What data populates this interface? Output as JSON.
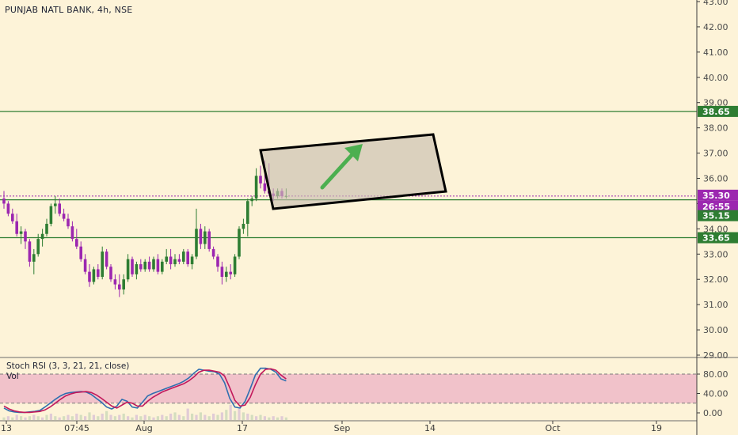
{
  "title": "PUNJAB NATL BANK, 4h, NSE",
  "colors": {
    "background": "#fdf3d8",
    "up": "#2e7d32",
    "down": "#9c27b0",
    "level_line": "#2e7d32",
    "last_price": "#9c27b0",
    "rsi_k": "#2f6fb0",
    "rsi_d": "#c2185b",
    "rsi_band": "#efb8c8",
    "arrow": "#4caf50"
  },
  "chart_data": [
    {
      "type": "candlestick",
      "title": "PUNJAB NATL BANK, 4h, NSE",
      "ylim": [
        29,
        43
      ],
      "y_ticks": [
        "29.00",
        "30.00",
        "31.00",
        "32.00",
        "33.00",
        "34.00",
        "35.00",
        "36.00",
        "37.00",
        "38.00",
        "39.00",
        "40.00",
        "41.00",
        "42.00",
        "43.00"
      ],
      "x_ticks": [
        "13",
        "07:45",
        "Aug",
        "17",
        "Sep",
        "14",
        "Oct",
        "19"
      ],
      "levels": [
        38.65,
        35.15,
        33.65
      ],
      "level_labels": [
        "38.65",
        "35.15",
        "33.65"
      ],
      "last_price": 35.3,
      "last_price_label": "35.30",
      "countdown_label": "26:55",
      "candles": [
        [
          35.2,
          35.5,
          34.8,
          35.0
        ],
        [
          35.0,
          35.1,
          34.5,
          34.6
        ],
        [
          34.6,
          34.8,
          34.2,
          34.3
        ],
        [
          34.3,
          34.6,
          33.7,
          33.8
        ],
        [
          33.8,
          34.1,
          33.4,
          33.9
        ],
        [
          33.9,
          34.0,
          33.2,
          33.5
        ],
        [
          33.5,
          33.6,
          32.5,
          32.7
        ],
        [
          32.7,
          33.2,
          32.2,
          33.0
        ],
        [
          33.0,
          33.8,
          32.9,
          33.6
        ],
        [
          33.6,
          34.0,
          33.3,
          33.8
        ],
        [
          33.8,
          34.4,
          33.7,
          34.2
        ],
        [
          34.2,
          35.0,
          34.1,
          34.9
        ],
        [
          34.9,
          35.3,
          34.6,
          35.0
        ],
        [
          35.0,
          35.2,
          34.5,
          34.6
        ],
        [
          34.6,
          34.8,
          34.3,
          34.4
        ],
        [
          34.4,
          34.6,
          34.0,
          34.1
        ],
        [
          34.1,
          34.3,
          33.5,
          33.6
        ],
        [
          33.6,
          34.0,
          33.2,
          33.3
        ],
        [
          33.3,
          33.5,
          32.7,
          32.8
        ],
        [
          32.8,
          33.0,
          32.2,
          32.3
        ],
        [
          32.3,
          32.6,
          31.7,
          31.9
        ],
        [
          31.9,
          32.5,
          31.8,
          32.4
        ],
        [
          32.4,
          32.6,
          32.0,
          32.1
        ],
        [
          32.1,
          33.3,
          32.0,
          33.1
        ],
        [
          33.1,
          33.2,
          32.4,
          32.5
        ],
        [
          32.5,
          32.6,
          31.9,
          32.0
        ],
        [
          32.0,
          32.2,
          31.6,
          31.8
        ],
        [
          31.8,
          32.2,
          31.3,
          31.6
        ],
        [
          31.6,
          32.2,
          31.4,
          32.0
        ],
        [
          32.0,
          33.0,
          31.9,
          32.8
        ],
        [
          32.8,
          32.9,
          32.1,
          32.2
        ],
        [
          32.2,
          32.7,
          32.0,
          32.6
        ],
        [
          32.6,
          32.8,
          32.3,
          32.4
        ],
        [
          32.4,
          32.8,
          32.3,
          32.7
        ],
        [
          32.7,
          32.9,
          32.3,
          32.4
        ],
        [
          32.4,
          32.9,
          32.3,
          32.8
        ],
        [
          32.8,
          33.0,
          32.2,
          32.3
        ],
        [
          32.3,
          32.8,
          32.2,
          32.7
        ],
        [
          32.7,
          33.2,
          32.6,
          32.9
        ],
        [
          32.9,
          33.2,
          32.4,
          32.6
        ],
        [
          32.6,
          33.0,
          32.5,
          32.8
        ],
        [
          32.8,
          33.0,
          32.6,
          32.7
        ],
        [
          32.7,
          33.2,
          32.6,
          33.1
        ],
        [
          33.1,
          33.2,
          32.5,
          32.6
        ],
        [
          32.6,
          33.0,
          32.4,
          32.9
        ],
        [
          32.9,
          34.8,
          32.8,
          34.0
        ],
        [
          34.0,
          34.2,
          33.2,
          33.4
        ],
        [
          33.4,
          34.1,
          33.2,
          33.9
        ],
        [
          33.9,
          34.0,
          33.1,
          33.2
        ],
        [
          33.2,
          33.3,
          32.8,
          32.9
        ],
        [
          32.9,
          33.0,
          32.3,
          32.5
        ],
        [
          32.5,
          32.7,
          31.8,
          32.1
        ],
        [
          32.1,
          32.5,
          31.9,
          32.3
        ],
        [
          32.3,
          32.6,
          32.0,
          32.2
        ],
        [
          32.2,
          33.0,
          32.1,
          32.9
        ],
        [
          32.9,
          34.1,
          32.8,
          34.0
        ],
        [
          34.0,
          34.4,
          33.8,
          34.2
        ],
        [
          34.2,
          35.2,
          33.7,
          35.1
        ],
        [
          35.1,
          35.3,
          34.9,
          35.2
        ],
        [
          35.2,
          36.4,
          35.1,
          36.1
        ],
        [
          36.1,
          36.5,
          35.6,
          35.8
        ],
        [
          35.8,
          36.7,
          35.4,
          35.5
        ],
        [
          35.5,
          36.6,
          35.3,
          35.4
        ],
        [
          35.4,
          35.6,
          35.1,
          35.3
        ],
        [
          35.3,
          35.6,
          35.2,
          35.5
        ],
        [
          35.5,
          35.6,
          35.2,
          35.3
        ],
        [
          35.3,
          35.6,
          35.2,
          35.3
        ]
      ]
    },
    {
      "type": "line",
      "title": "Stoch RSI (3, 3, 21, 21, close)",
      "ylim": [
        -10,
        100
      ],
      "y_ticks": [
        "0.00",
        "40.00",
        "80.00"
      ],
      "band": [
        20,
        80
      ],
      "series": [
        {
          "values": [
            10,
            4,
            2,
            1,
            1,
            2,
            3,
            5,
            12,
            20,
            28,
            35,
            40,
            42,
            43,
            44,
            43,
            38,
            30,
            22,
            12,
            8,
            14,
            28,
            24,
            12,
            10,
            22,
            35,
            40,
            44,
            48,
            52,
            56,
            60,
            65,
            72,
            82,
            90,
            88,
            86,
            85,
            80,
            62,
            30,
            12,
            10,
            24,
            50,
            78,
            92,
            92,
            90,
            84,
            70,
            66
          ]
        },
        {
          "values": [
            14,
            8,
            4,
            2,
            1,
            1,
            2,
            3,
            6,
            12,
            20,
            28,
            35,
            39,
            42,
            43,
            44,
            42,
            37,
            30,
            22,
            14,
            10,
            16,
            22,
            20,
            14,
            14,
            24,
            32,
            38,
            44,
            48,
            52,
            56,
            60,
            66,
            74,
            84,
            88,
            88,
            86,
            84,
            76,
            52,
            26,
            14,
            16,
            32,
            58,
            80,
            90,
            91,
            88,
            78,
            70
          ]
        }
      ]
    },
    {
      "type": "bar",
      "title": "Vol",
      "values": [
        2,
        3,
        2,
        4,
        3,
        2,
        3,
        4,
        3,
        2,
        4,
        5,
        3,
        2,
        3,
        4,
        3,
        5,
        4,
        3,
        6,
        4,
        3,
        5,
        7,
        4,
        3,
        4,
        5,
        3,
        2,
        4,
        3,
        4,
        3,
        2,
        3,
        4,
        3,
        5,
        6,
        4,
        3,
        9,
        5,
        4,
        6,
        4,
        3,
        5,
        4,
        6,
        8,
        12,
        7,
        9,
        6,
        5,
        4,
        3,
        4,
        3,
        2,
        3,
        2,
        3,
        2
      ]
    }
  ]
}
